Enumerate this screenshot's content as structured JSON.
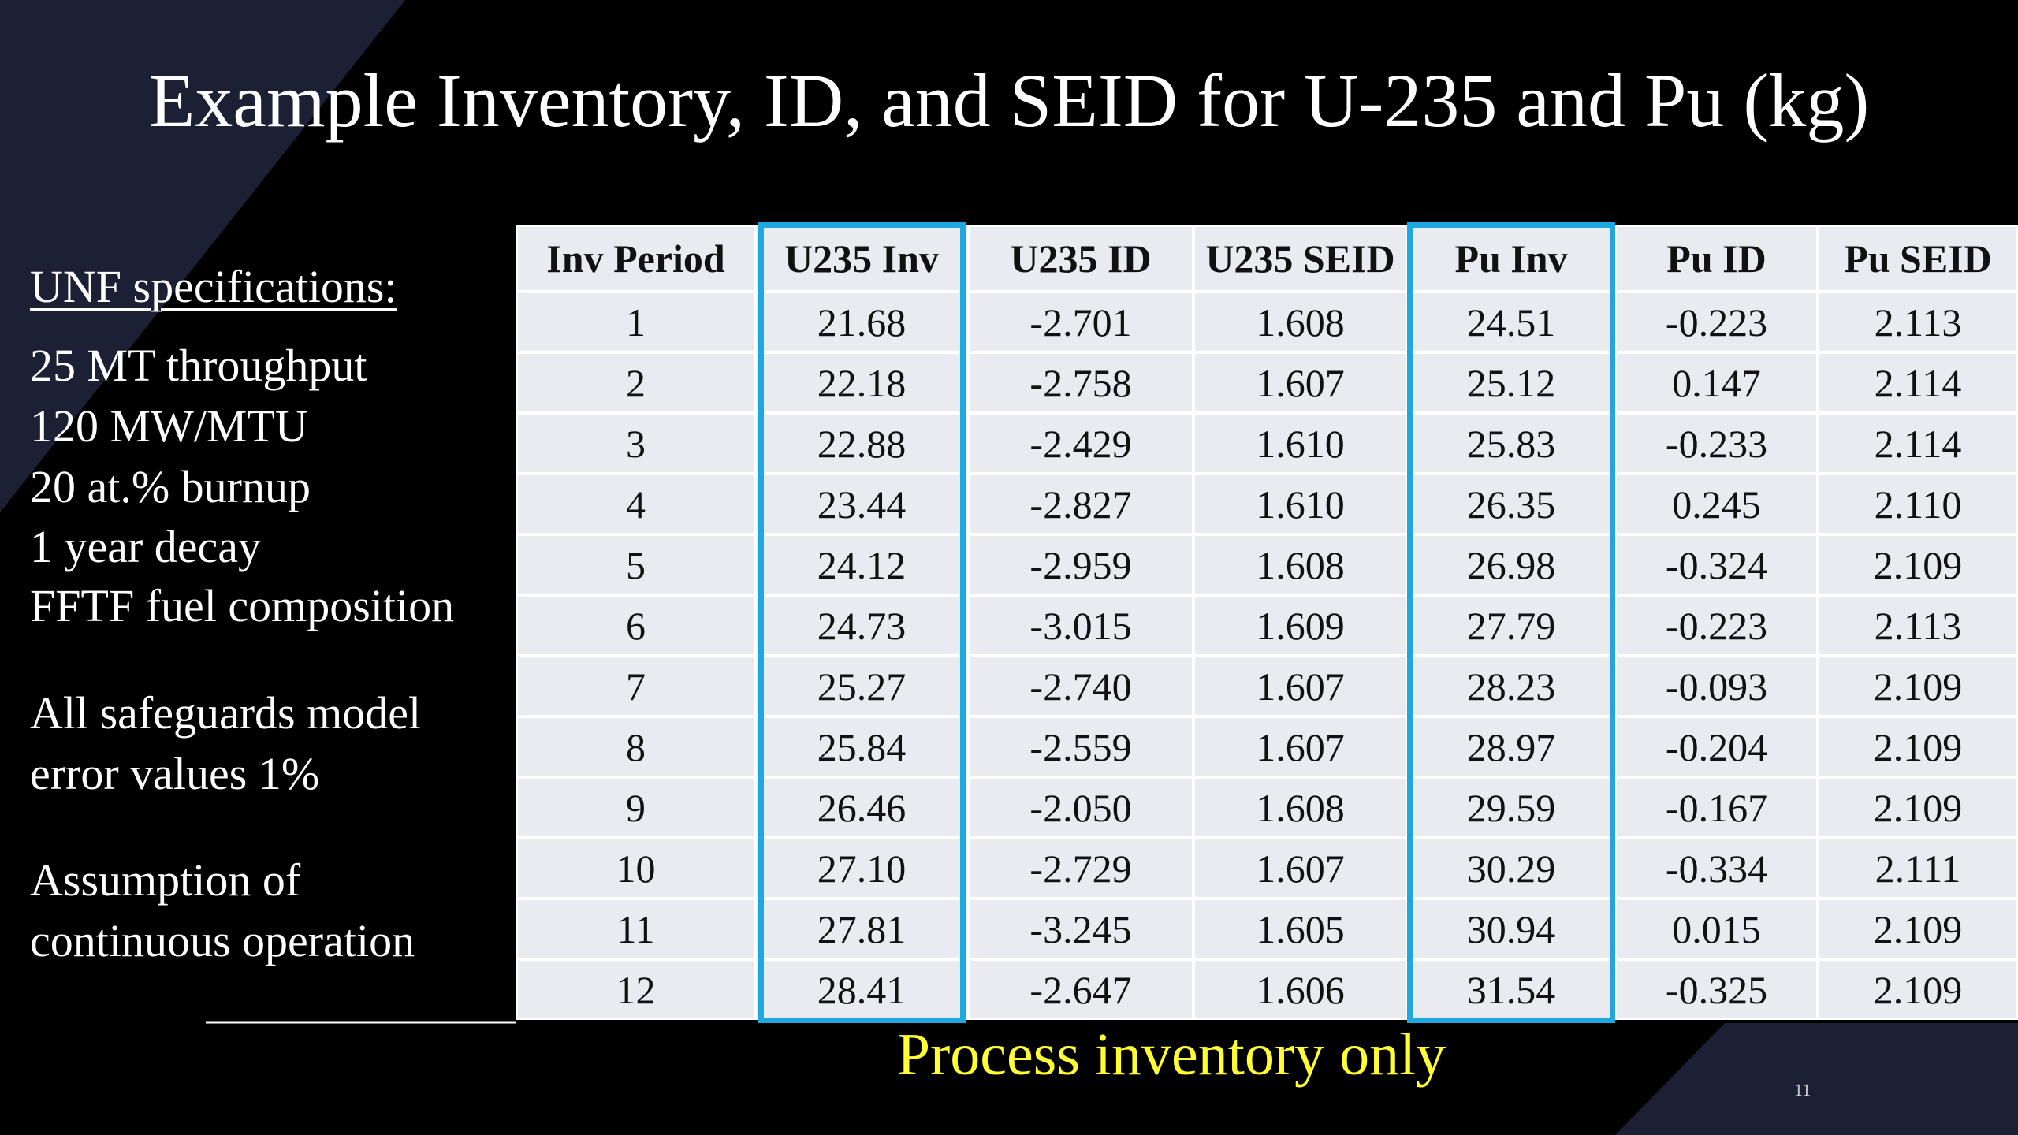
{
  "header": {
    "title": "Example Inventory, ID, and SEID for U-235 and Pu (kg)"
  },
  "sidebar": {
    "heading": "UNF specifications:",
    "lines": [
      "25 MT throughput",
      "120 MW/MTU",
      "20 at.% burnup",
      "1 year decay",
      "FFTF fuel composition",
      "All safeguards model",
      "error values 1%",
      "Assumption of",
      "continuous operation"
    ]
  },
  "table": {
    "columns": [
      "Inv Period",
      "U235 Inv",
      "U235 ID",
      "U235 SEID",
      "Pu Inv",
      "Pu ID",
      "Pu SEID"
    ],
    "rows": [
      [
        "1",
        "21.68",
        "-2.701",
        "1.608",
        "24.51",
        "-0.223",
        "2.113"
      ],
      [
        "2",
        "22.18",
        "-2.758",
        "1.607",
        "25.12",
        "0.147",
        "2.114"
      ],
      [
        "3",
        "22.88",
        "-2.429",
        "1.610",
        "25.83",
        "-0.233",
        "2.114"
      ],
      [
        "4",
        "23.44",
        "-2.827",
        "1.610",
        "26.35",
        "0.245",
        "2.110"
      ],
      [
        "5",
        "24.12",
        "-2.959",
        "1.608",
        "26.98",
        "-0.324",
        "2.109"
      ],
      [
        "6",
        "24.73",
        "-3.015",
        "1.609",
        "27.79",
        "-0.223",
        "2.113"
      ],
      [
        "7",
        "25.27",
        "-2.740",
        "1.607",
        "28.23",
        "-0.093",
        "2.109"
      ],
      [
        "8",
        "25.84",
        "-2.559",
        "1.607",
        "28.97",
        "-0.204",
        "2.109"
      ],
      [
        "9",
        "26.46",
        "-2.050",
        "1.608",
        "29.59",
        "-0.167",
        "2.109"
      ],
      [
        "10",
        "27.10",
        "-2.729",
        "1.607",
        "30.29",
        "-0.334",
        "2.111"
      ],
      [
        "11",
        "27.81",
        "-3.245",
        "1.605",
        "30.94",
        "0.015",
        "2.109"
      ],
      [
        "12",
        "28.41",
        "-2.647",
        "1.606",
        "31.54",
        "-0.325",
        "2.109"
      ]
    ]
  },
  "annotation": "Process inventory only",
  "page_number": "11"
}
